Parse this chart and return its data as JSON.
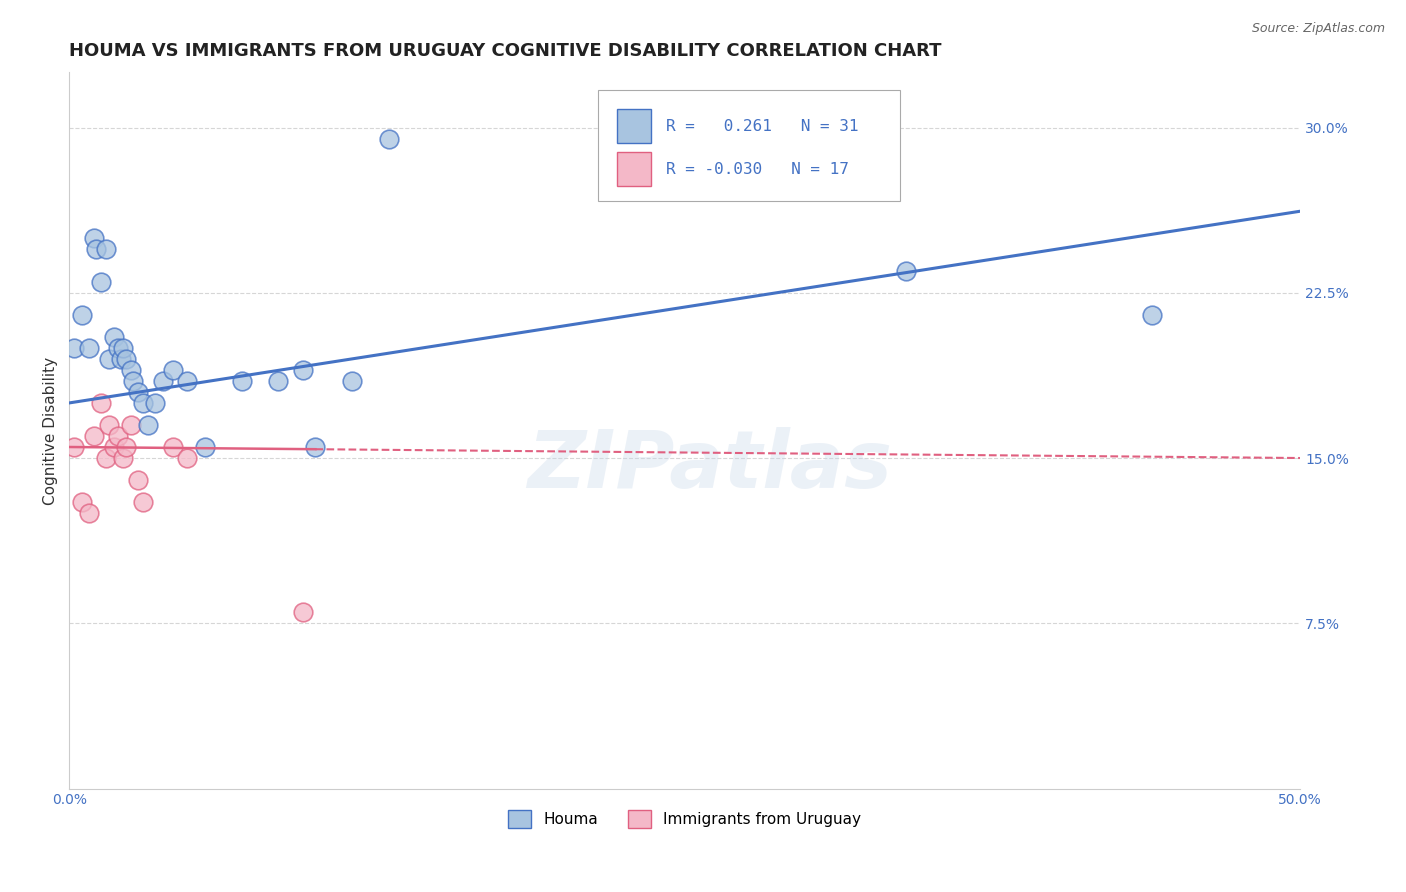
{
  "title": "HOUMA VS IMMIGRANTS FROM URUGUAY COGNITIVE DISABILITY CORRELATION CHART",
  "source": "Source: ZipAtlas.com",
  "xlabel": "",
  "ylabel": "Cognitive Disability",
  "xlim": [
    0.0,
    0.5
  ],
  "ylim": [
    0.0,
    0.325
  ],
  "yticks": [
    0.075,
    0.15,
    0.225,
    0.3
  ],
  "ytick_labels": [
    "7.5%",
    "15.0%",
    "22.5%",
    "30.0%"
  ],
  "xticks": [
    0.0,
    0.1,
    0.2,
    0.3,
    0.4,
    0.5
  ],
  "xtick_labels": [
    "0.0%",
    "",
    "",
    "",
    "",
    "50.0%"
  ],
  "houma_color": "#a8c4e0",
  "uruguay_color": "#f4b8c8",
  "houma_line_color": "#4472c4",
  "uruguay_line_color": "#e06080",
  "houma_r": 0.261,
  "houma_n": 31,
  "uruguay_r": -0.03,
  "uruguay_n": 17,
  "houma_scatter_x": [
    0.002,
    0.005,
    0.008,
    0.01,
    0.011,
    0.013,
    0.015,
    0.016,
    0.018,
    0.02,
    0.021,
    0.022,
    0.023,
    0.025,
    0.026,
    0.028,
    0.03,
    0.032,
    0.035,
    0.038,
    0.042,
    0.048,
    0.055,
    0.07,
    0.085,
    0.095,
    0.1,
    0.115,
    0.13,
    0.34,
    0.44
  ],
  "houma_scatter_y": [
    0.2,
    0.215,
    0.2,
    0.25,
    0.245,
    0.23,
    0.245,
    0.195,
    0.205,
    0.2,
    0.195,
    0.2,
    0.195,
    0.19,
    0.185,
    0.18,
    0.175,
    0.165,
    0.175,
    0.185,
    0.19,
    0.185,
    0.155,
    0.185,
    0.185,
    0.19,
    0.155,
    0.185,
    0.295,
    0.235,
    0.215
  ],
  "uruguay_scatter_x": [
    0.002,
    0.005,
    0.008,
    0.01,
    0.013,
    0.015,
    0.016,
    0.018,
    0.02,
    0.022,
    0.023,
    0.025,
    0.028,
    0.03,
    0.042,
    0.048,
    0.095
  ],
  "uruguay_scatter_y": [
    0.155,
    0.13,
    0.125,
    0.16,
    0.175,
    0.15,
    0.165,
    0.155,
    0.16,
    0.15,
    0.155,
    0.165,
    0.14,
    0.13,
    0.155,
    0.15,
    0.08
  ],
  "houma_line_x": [
    0.0,
    0.5
  ],
  "houma_line_y": [
    0.175,
    0.262
  ],
  "uruguay_line_x": [
    0.0,
    0.5
  ],
  "uruguay_line_y": [
    0.155,
    0.15
  ],
  "watermark_text": "ZIPatlas",
  "background_color": "#ffffff",
  "grid_color": "#cccccc",
  "title_fontsize": 13,
  "axis_label_fontsize": 11,
  "tick_fontsize": 10
}
